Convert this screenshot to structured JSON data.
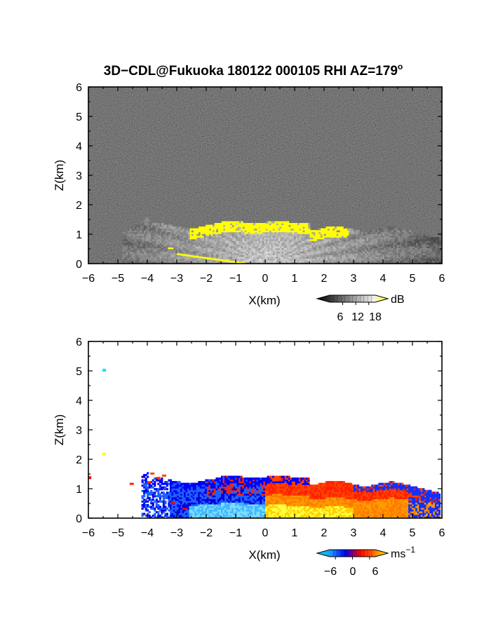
{
  "chart_data": [
    {
      "type": "heatmap",
      "panel": "reflectivity",
      "title": "3D−CDL@Fukuoka 180122 000105 RHI AZ=179",
      "title_superscript": "o",
      "xlabel": "X(km)",
      "ylabel": "Z(km)",
      "xlim": [
        -6,
        6
      ],
      "ylim": [
        0,
        6
      ],
      "xticks": [
        "−6",
        "−5",
        "−4",
        "−3",
        "−2",
        "−1",
        "0",
        "1",
        "2",
        "3",
        "4",
        "5",
        "6"
      ],
      "yticks": [
        "0",
        "1",
        "2",
        "3",
        "4",
        "5",
        "6"
      ],
      "grid": false,
      "colorbar": {
        "unit": "dB",
        "ticks": [
          "6",
          "12",
          "18"
        ],
        "tick_values": [
          6,
          12,
          18
        ],
        "range": [
          0,
          21
        ],
        "colors": [
          "#000000",
          "#3a3a3a",
          "#7a7a7a",
          "#b8b8b8",
          "#f0f0f0",
          "#ffff00"
        ]
      },
      "features": {
        "background_noise_color": "#333333",
        "strong_echo_color": "#ffff00",
        "echo_top_height_km": 1.4,
        "echo_x_range_km": [
          -5,
          6
        ]
      }
    },
    {
      "type": "heatmap",
      "panel": "doppler-velocity",
      "xlabel": "X(km)",
      "ylabel": "Z(km)",
      "xlim": [
        -6,
        6
      ],
      "ylim": [
        0,
        6
      ],
      "xticks": [
        "−6",
        "−5",
        "−4",
        "−3",
        "−2",
        "−1",
        "0",
        "1",
        "2",
        "3",
        "4",
        "5",
        "6"
      ],
      "yticks": [
        "0",
        "1",
        "2",
        "3",
        "4",
        "5",
        "6"
      ],
      "grid": false,
      "colorbar": {
        "unit": "ms",
        "unit_superscript": "−1",
        "ticks": [
          "−6",
          "0",
          "6"
        ],
        "tick_values": [
          -6,
          0,
          6
        ],
        "range": [
          -8,
          8
        ],
        "colors": [
          "#00e5ff",
          "#1e90ff",
          "#0000ff",
          "#ff0000",
          "#ff6a00",
          "#ffff00"
        ]
      },
      "features": {
        "negative_region_x_km": [
          -3.5,
          0
        ],
        "positive_region_x_km": [
          0,
          5
        ],
        "echo_top_height_km": 1.4,
        "isolated_points": [
          {
            "x": -5.45,
            "z": 5.0,
            "value": -7
          },
          {
            "x": -5.45,
            "z": 2.15,
            "value": 7
          },
          {
            "x": -5.95,
            "z": 1.35,
            "value": 3
          }
        ]
      }
    }
  ]
}
